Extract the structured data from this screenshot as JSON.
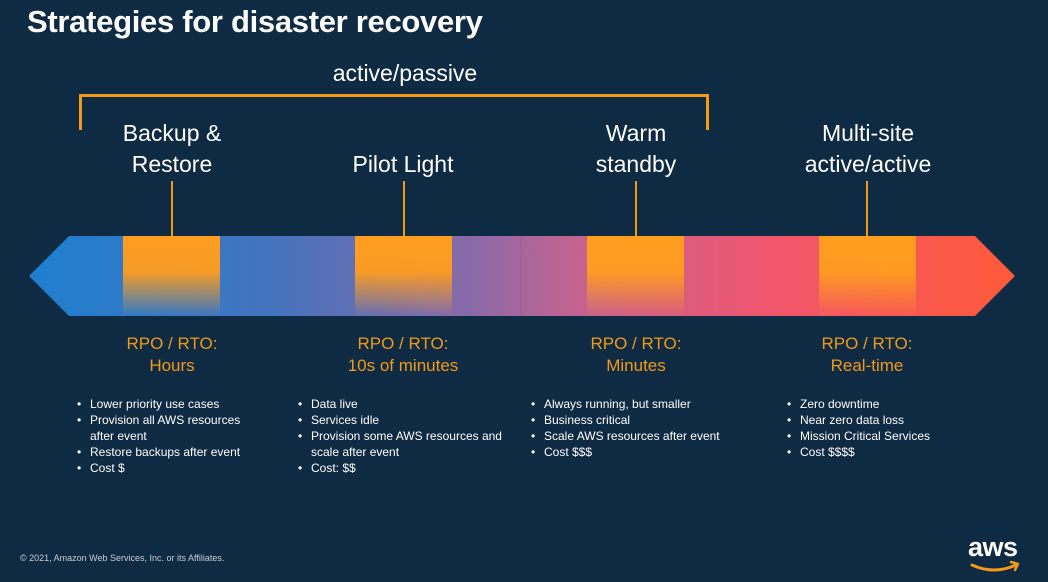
{
  "title": "Strategies for disaster recovery",
  "active_passive_label": "active/passive",
  "strategies": [
    {
      "name_line1": "Backup &",
      "name_line2": "Restore",
      "rpo_label": "RPO / RTO:",
      "rpo_value": "Hours",
      "bullets": [
        "Lower priority use cases",
        "Provision all AWS resources",
        "after event",
        "Restore backups after event",
        "Cost $"
      ]
    },
    {
      "name_line1": "Pilot Light",
      "name_line2": "",
      "rpo_label": "RPO / RTO:",
      "rpo_value": "10s of minutes",
      "bullets": [
        "Data live",
        "Services idle",
        "Provision some AWS resources and",
        "scale after event",
        "Cost: $$"
      ]
    },
    {
      "name_line1": "Warm",
      "name_line2": "standby",
      "rpo_label": "RPO / RTO:",
      "rpo_value": "Minutes",
      "bullets": [
        "Always running, but smaller",
        "Business critical",
        "Scale AWS resources after event",
        "Cost $$$"
      ]
    },
    {
      "name_line1": "Multi-site",
      "name_line2": "active/active",
      "rpo_label": "RPO / RTO:",
      "rpo_value": "Real-time",
      "bullets": [
        "Zero downtime",
        "Near zero data loss",
        "Mission Critical Services",
        "Cost $$$$"
      ]
    }
  ],
  "footer": "© 2021, Amazon Web Services, Inc. or its Affiliates.",
  "logo_text": "aws",
  "colors": {
    "background": "#0f2a43",
    "accent_orange": "#f29a17",
    "arrow_left": "#2e7fc9",
    "arrow_right": "#ff5a3c"
  }
}
